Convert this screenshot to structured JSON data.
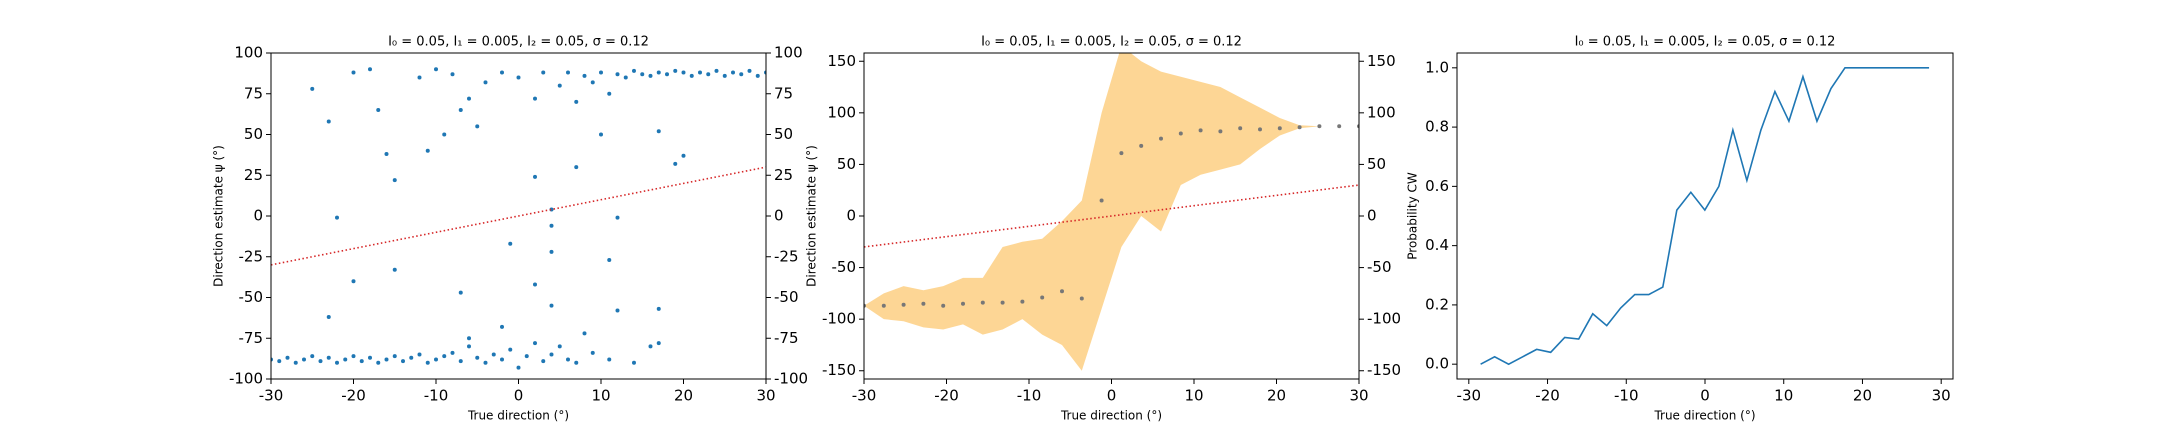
{
  "chart_data": [
    {
      "type": "scatter",
      "title": "I₀ = 0.05, I₁ = 0.005, I₂ = 0.05, σ = 0.12",
      "x_label": "True direction (°)",
      "y_label": "Direction estimate ψ (°)",
      "xlim": [
        -30,
        30
      ],
      "ylim": [
        -100,
        100
      ],
      "y2lim": [
        -100,
        100
      ],
      "xticks": [
        -30,
        -20,
        -10,
        0,
        10,
        20,
        30
      ],
      "yticks": [
        -100,
        -75,
        -50,
        -25,
        0,
        25,
        50,
        75,
        100
      ],
      "y2ticks": [
        -100,
        -75,
        -50,
        -25,
        0,
        25,
        50,
        75,
        100
      ],
      "series": [
        {
          "type": "scatter",
          "color": "#1f77b4",
          "x": [
            -30,
            -29,
            -28,
            -27,
            -26,
            -25,
            -24,
            -23,
            -22,
            -21,
            -20,
            -19,
            -18,
            -17,
            -16,
            -15,
            -14,
            -13,
            -12,
            -11,
            -10,
            -9,
            -8,
            -7,
            -6,
            -5,
            -4,
            -3,
            -2,
            -1,
            0,
            1,
            2,
            3,
            4,
            5,
            6,
            7,
            9,
            11,
            14,
            16,
            17,
            -23,
            -20,
            -15,
            -7,
            -6,
            -2,
            -1,
            2,
            4,
            4,
            8,
            12,
            17,
            -25,
            -20,
            -18,
            -17,
            -12,
            -10,
            -8,
            -6,
            -4,
            -2,
            0,
            2,
            3,
            5,
            6,
            7,
            8,
            9,
            10,
            11,
            12,
            13,
            14,
            15,
            16,
            17,
            18,
            19,
            20,
            21,
            22,
            23,
            24,
            25,
            26,
            27,
            28,
            29,
            30,
            -23,
            -16,
            -15,
            -11,
            -9,
            -7,
            -5,
            2,
            4,
            4,
            7,
            10,
            12,
            11,
            17,
            19,
            20,
            -22
          ],
          "values": [
            -88,
            -89,
            -87,
            -90,
            -88,
            -86,
            -89,
            -87,
            -90,
            -88,
            -86,
            -89,
            -87,
            -90,
            -88,
            -86,
            -89,
            -87,
            -85,
            -90,
            -88,
            -86,
            -84,
            -89,
            -80,
            -87,
            -90,
            -85,
            -88,
            -82,
            -93,
            -86,
            -78,
            -89,
            -85,
            -80,
            -88,
            -90,
            -84,
            -88,
            -90,
            -80,
            -78,
            -62,
            -40,
            -33,
            -47,
            -75,
            -68,
            -17,
            -42,
            -22,
            -55,
            -72,
            -58,
            -57,
            78,
            88,
            90,
            65,
            85,
            90,
            87,
            72,
            82,
            88,
            85,
            72,
            88,
            80,
            88,
            70,
            86,
            82,
            88,
            75,
            87,
            85,
            89,
            87,
            86,
            88,
            87,
            89,
            88,
            86,
            88,
            87,
            89,
            86,
            88,
            87,
            89,
            86,
            88,
            58,
            38,
            22,
            40,
            50,
            65,
            55,
            24,
            4,
            -6,
            30,
            50,
            -1,
            -27,
            52,
            32,
            37,
            -1
          ]
        },
        {
          "type": "line",
          "color": "#d62728",
          "dash": "dotted",
          "x": [
            -30,
            30
          ],
          "values": [
            -30,
            30
          ]
        }
      ]
    },
    {
      "type": "band",
      "title": "I₀ = 0.05, I₁ = 0.005, I₂ = 0.05, σ = 0.12",
      "x_label": "True direction (°)",
      "y_label": "Direction estimate ψ (°)",
      "xlim": [
        -30,
        30
      ],
      "ylim": [
        -158,
        158
      ],
      "y2lim": [
        -158,
        158
      ],
      "xticks": [
        -30,
        -20,
        -10,
        0,
        10,
        20,
        30
      ],
      "yticks": [
        -150,
        -100,
        -50,
        0,
        50,
        100,
        150
      ],
      "y2ticks": [
        -150,
        -100,
        -50,
        0,
        50,
        100,
        150
      ],
      "series": [
        {
          "type": "band",
          "color": "#fdd28a",
          "x": [
            -30,
            -27.6,
            -25.2,
            -22.8,
            -20.4,
            -18,
            -15.6,
            -13.2,
            -10.8,
            -8.4,
            -6,
            -3.6,
            -1.2,
            1.2,
            3.6,
            6,
            8.4,
            10.8,
            13.2,
            15.6,
            18,
            20.4,
            22.8,
            25.2,
            27.6,
            30
          ],
          "lower": [
            -87,
            -100,
            -102,
            -108,
            -110,
            -105,
            -115,
            -110,
            -100,
            -115,
            -125,
            -150,
            -90,
            -30,
            0,
            -15,
            30,
            40,
            45,
            50,
            65,
            78,
            85,
            87,
            87,
            87
          ],
          "upper": [
            -87,
            -75,
            -68,
            -72,
            -68,
            -60,
            -60,
            -30,
            -25,
            -22,
            -5,
            15,
            100,
            165,
            150,
            140,
            135,
            130,
            125,
            115,
            105,
            95,
            88,
            87,
            87,
            87
          ]
        },
        {
          "type": "scatter",
          "color": "#777777",
          "x": [
            -30,
            -27.6,
            -25.2,
            -22.8,
            -20.4,
            -18,
            -15.6,
            -13.2,
            -10.8,
            -8.4,
            -6,
            -3.6,
            -1.2,
            1.2,
            3.6,
            6,
            8.4,
            10.8,
            13.2,
            15.6,
            18,
            20.4,
            22.8,
            25.2,
            27.6,
            30
          ],
          "values": [
            -87,
            -87,
            -86,
            -85,
            -87,
            -85,
            -84,
            -84,
            -83,
            -79,
            -73,
            -80,
            15,
            61,
            68,
            75,
            80,
            83,
            82,
            85,
            84,
            85,
            86,
            87,
            87,
            87
          ]
        },
        {
          "type": "line",
          "color": "#d62728",
          "dash": "dotted",
          "x": [
            -30,
            30
          ],
          "values": [
            -30,
            30
          ]
        }
      ]
    },
    {
      "type": "line",
      "title": "I₀ = 0.05, I₁ = 0.005, I₂ = 0.05, σ = 0.12",
      "x_label": "True direction (°)",
      "y_label": "Probability CW",
      "xlim": [
        -31.5,
        31.5
      ],
      "ylim": [
        -0.05,
        1.05
      ],
      "xticks": [
        -30,
        -20,
        -10,
        0,
        10,
        20,
        30
      ],
      "yticks": [
        {
          "value": 0,
          "label": "0.0"
        },
        0.2,
        0.4,
        0.6,
        0.8,
        {
          "value": 1,
          "label": "1.0"
        }
      ],
      "series": [
        {
          "type": "line",
          "color": "#1f77b4",
          "x": [
            -28.5,
            -26.72,
            -24.94,
            -23.16,
            -21.38,
            -19.6,
            -17.82,
            -16.04,
            -14.26,
            -12.48,
            -10.7,
            -8.92,
            -7.14,
            -5.36,
            -3.58,
            -1.8,
            -0.02,
            1.76,
            3.54,
            5.32,
            7.1,
            8.88,
            10.66,
            12.44,
            14.22,
            16,
            17.78,
            19.56,
            21.34,
            23.12,
            24.9,
            26.68,
            28.46
          ],
          "values": [
            0,
            0.025,
            0,
            0.025,
            0.05,
            0.04,
            0.09,
            0.085,
            0.17,
            0.13,
            0.19,
            0.235,
            0.235,
            0.26,
            0.52,
            0.58,
            0.52,
            0.6,
            0.79,
            0.62,
            0.79,
            0.92,
            0.82,
            0.97,
            0.82,
            0.93,
            1,
            1,
            1,
            1,
            1,
            1,
            1
          ]
        }
      ]
    }
  ]
}
